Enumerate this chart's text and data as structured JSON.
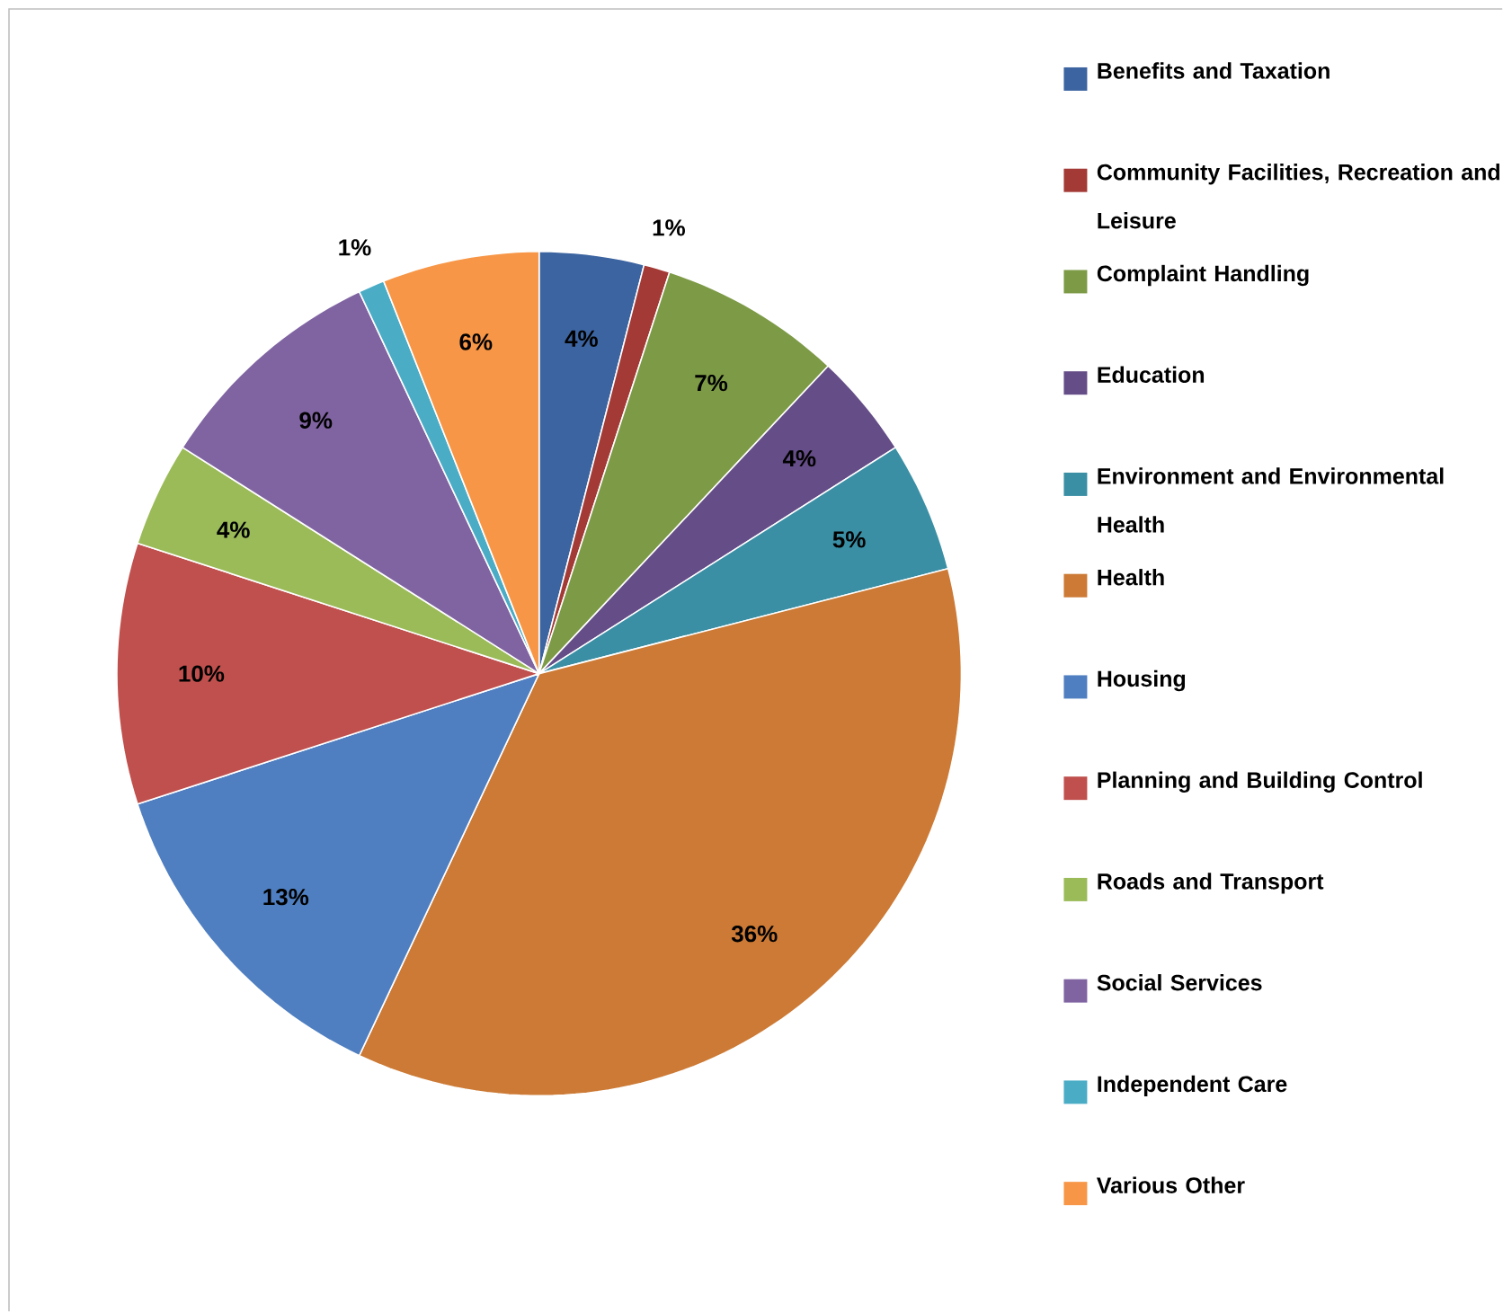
{
  "chart_data": {
    "type": "pie",
    "legend": "right",
    "value_labels": [
      "4%",
      "1%",
      "7%",
      "4%",
      "5%",
      "36%",
      "13%",
      "10%",
      "4%",
      "9%",
      "1%",
      "6%"
    ],
    "categories": [
      "Benefits and Taxation",
      "Community Facilities, Recreation and Leisure",
      "Complaint Handling",
      "Education",
      "Environment and Environmental Health",
      "Health",
      "Housing",
      "Planning and Building Control",
      "Roads and Transport",
      "Social Services",
      "Independent Care",
      "Various Other"
    ],
    "values": [
      4,
      1,
      7,
      4,
      5,
      36,
      13,
      10,
      4,
      9,
      1,
      6
    ],
    "colors": [
      "#3c64a0",
      "#a33a36",
      "#7d9a46",
      "#654d87",
      "#3a8fa5",
      "#cc7a35",
      "#4f7fc0",
      "#c0504d",
      "#9bbb59",
      "#8064a2",
      "#4bacc6",
      "#f79646"
    ]
  }
}
